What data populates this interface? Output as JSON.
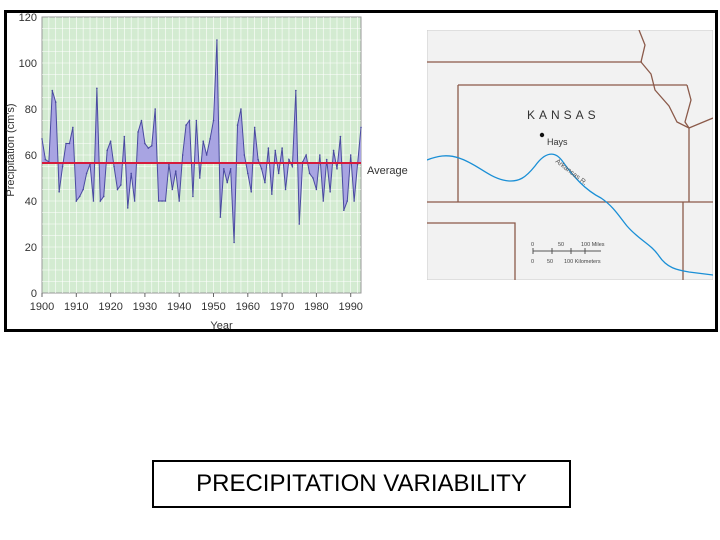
{
  "chart_data": {
    "type": "area",
    "xlabel": "Year",
    "ylabel": "Precipitation (cm's)",
    "xlim": [
      1900,
      1993
    ],
    "ylim": [
      0,
      120
    ],
    "xticks": [
      1900,
      1910,
      1920,
      1930,
      1940,
      1950,
      1960,
      1970,
      1980,
      1990
    ],
    "yticks": [
      0,
      20,
      40,
      60,
      80,
      100,
      120
    ],
    "reference_line": {
      "label": "Average",
      "value": 56.5
    },
    "grid": true,
    "legend": "none",
    "x": [
      1900,
      1901,
      1902,
      1903,
      1904,
      1905,
      1906,
      1907,
      1908,
      1909,
      1910,
      1911,
      1912,
      1913,
      1914,
      1915,
      1916,
      1917,
      1918,
      1919,
      1920,
      1921,
      1922,
      1923,
      1924,
      1925,
      1926,
      1927,
      1928,
      1929,
      1930,
      1931,
      1932,
      1933,
      1934,
      1935,
      1936,
      1937,
      1938,
      1939,
      1940,
      1941,
      1942,
      1943,
      1944,
      1945,
      1946,
      1947,
      1948,
      1949,
      1950,
      1951,
      1952,
      1953,
      1954,
      1955,
      1956,
      1957,
      1958,
      1959,
      1960,
      1961,
      1962,
      1963,
      1964,
      1965,
      1966,
      1967,
      1968,
      1969,
      1970,
      1971,
      1972,
      1973,
      1974,
      1975,
      1976,
      1977,
      1978,
      1979,
      1980,
      1981,
      1982,
      1983,
      1984,
      1985,
      1986,
      1987,
      1988,
      1989,
      1990,
      1991,
      1992,
      1993
    ],
    "values": [
      67,
      58,
      57,
      88,
      83,
      44,
      55,
      65,
      65,
      72,
      40,
      42,
      45,
      52,
      56,
      40,
      89,
      40,
      42,
      62,
      66,
      55,
      45,
      47,
      68,
      37,
      52,
      40,
      70,
      75,
      65,
      63,
      64,
      80,
      40,
      40,
      40,
      56,
      45,
      53,
      40,
      60,
      73,
      75,
      42,
      75,
      50,
      66,
      60,
      67,
      75,
      110,
      33,
      54,
      48,
      54,
      22,
      73,
      80,
      60,
      52,
      44,
      72,
      58,
      54,
      48,
      63,
      43,
      62,
      52,
      63,
      45,
      58,
      55,
      88,
      30,
      57,
      60,
      52,
      50,
      45,
      60,
      40,
      58,
      44,
      62,
      54,
      68,
      36,
      40,
      60,
      40,
      56,
      72
    ],
    "colors": {
      "plot_background": "#d3ebd1",
      "grid": "#ffffff",
      "area_fill": "#a8a4e2",
      "area_stroke": "#4a4aa0",
      "average_line": "#d61a3c"
    }
  },
  "map": {
    "state_label": "KANSAS",
    "city_label": "Hays",
    "river_label": "Arkansas R.",
    "scale_miles": [
      "0",
      "50",
      "100 Miles"
    ],
    "scale_km": [
      "0",
      "50",
      "100 Kilometers"
    ],
    "colors": {
      "land": "#f2f2f2",
      "border": "#8b5a4a",
      "river": "#1a8fd6"
    }
  },
  "caption": "PRECIPITATION VARIABILITY"
}
